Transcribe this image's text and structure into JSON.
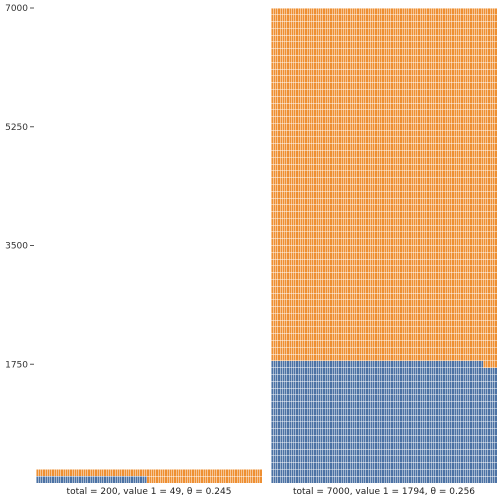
{
  "colors": {
    "value1": "#4c72a4",
    "remainder": "#ee8f32",
    "unit_edge": "#ffffff"
  },
  "chart_data": {
    "type": "waffle",
    "title": "",
    "y_axis": {
      "ticks": [
        1750,
        3500,
        5250,
        7000
      ],
      "tick_labels": [
        "1750",
        "3500",
        "5250",
        "7000"
      ],
      "ylim": [
        0,
        7000
      ]
    },
    "units_per_row": 100,
    "panels": [
      {
        "label": "total = 200, value 1 = 49, θ = 0.245",
        "total": 200,
        "value1": 49,
        "theta": 0.245
      },
      {
        "label": "total = 7000, value 1 = 1794, θ = 0.256",
        "total": 7000,
        "value1": 1794,
        "theta": 0.256
      }
    ]
  }
}
